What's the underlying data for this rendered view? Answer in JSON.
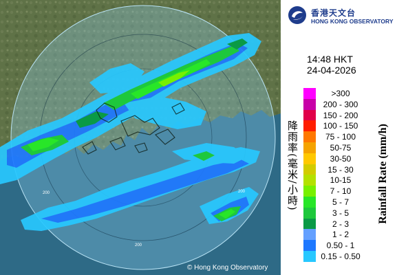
{
  "header": {
    "org_name_zh": "香港天文台",
    "org_name_en": "HONG KONG OBSERVATORY"
  },
  "timestamp": {
    "time": "14:48 HKT",
    "date": "24-04-2026"
  },
  "legend": {
    "title_zh": "降雨率(毫米/小時)",
    "title_en": "Rainfall Rate (mm/h)",
    "items": [
      {
        "label": ">300",
        "color": "#ff00ff"
      },
      {
        "label": "200 - 300",
        "color": "#c800a8"
      },
      {
        "label": "150 - 200",
        "color": "#e0004a"
      },
      {
        "label": "100 - 150",
        "color": "#ff1e00"
      },
      {
        "label": "75 - 100",
        "color": "#ff7800"
      },
      {
        "label": "50-75",
        "color": "#f5a300"
      },
      {
        "label": "30-50",
        "color": "#ffc800"
      },
      {
        "label": "15 - 30",
        "color": "#d2cc00"
      },
      {
        "label": "10-15",
        "color": "#b4e100"
      },
      {
        "label": "7 - 10",
        "color": "#78f000"
      },
      {
        "label": "5 - 7",
        "color": "#28e628"
      },
      {
        "label": "3 - 5",
        "color": "#1ec83c"
      },
      {
        "label": "2 - 3",
        "color": "#0a9a46"
      },
      {
        "label": "1 - 2",
        "color": "#64a0ff"
      },
      {
        "label": "0.50 - 1",
        "color": "#1e78ff"
      },
      {
        "label": "0.15 - 0.50",
        "color": "#28c8ff"
      }
    ]
  },
  "map": {
    "range_labels": [
      "200",
      "200",
      "200"
    ],
    "copyright": "© Hong Kong Observatory"
  }
}
